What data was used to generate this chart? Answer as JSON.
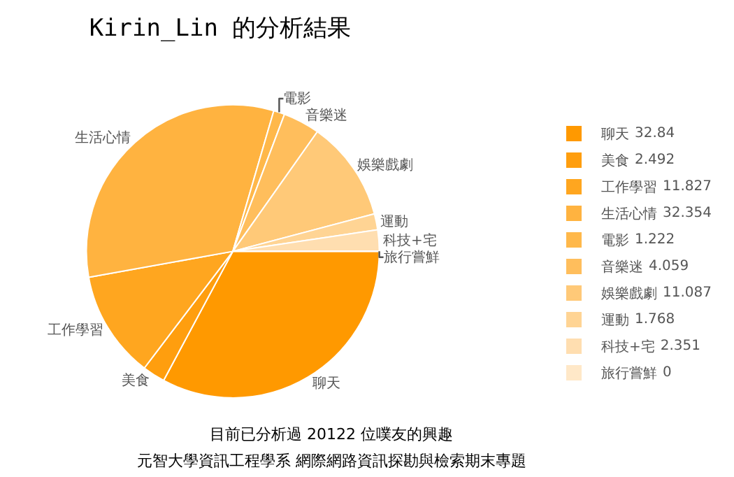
{
  "chart_data": {
    "type": "pie",
    "title": "Kirin_Lin 的分析結果",
    "categories": [
      "聊天",
      "美食",
      "工作學習",
      "生活心情",
      "電影",
      "音樂迷",
      "娛樂戲劇",
      "運動",
      "科技+宅",
      "旅行嘗鮮"
    ],
    "values": [
      32.84,
      2.492,
      11.827,
      32.354,
      1.222,
      4.059,
      11.087,
      1.768,
      2.351,
      0
    ],
    "colors": [
      "#ff9900",
      "#ff9e0e",
      "#ffa61f",
      "#ffb340",
      "#ffb84a",
      "#ffbe5c",
      "#ffc978",
      "#ffd494",
      "#ffdeb0",
      "#ffe8c8"
    ],
    "value_labels": [
      "32.84",
      "2.492",
      "11.827",
      "32.354",
      "1.222",
      "4.059",
      "11.087",
      "1.768",
      "2.351",
      "0"
    ],
    "legend": "right",
    "annotations": [
      "目前已分析過 20122 位噗友的興趣",
      "元智大學資訊工程學系 網際網路資訊探勘與檢索期末專題"
    ]
  }
}
